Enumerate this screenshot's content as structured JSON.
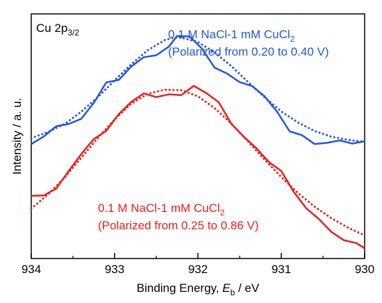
{
  "chart_data": {
    "type": "line",
    "title": "",
    "panel_label": {
      "main": "Cu 2p",
      "sub": "3/2"
    },
    "xlabel": {
      "pre": "Binding Energy, ",
      "var": "E",
      "sub": "b",
      "post": " / eV"
    },
    "ylabel": "Intensity / a. u.",
    "xlim": [
      934,
      930
    ],
    "x_reversed": true,
    "ylim": [
      0,
      1
    ],
    "x_ticks": [
      934,
      933,
      932,
      931,
      930
    ],
    "x_tick_labels": [
      "934",
      "933",
      "932",
      "931",
      "930"
    ],
    "y_ticks": [],
    "grid": false,
    "annotations": [
      {
        "line1_pre": "0.1 M NaCl-1 mM CuCl",
        "line1_sub": "2",
        "line2": "(Polarized from 0.20 to 0.40 V)",
        "color": "#2255dd"
      },
      {
        "line1_pre": "0.1 M NaCl-1 mM CuCl",
        "line1_sub": "2",
        "line2": "(Polarized from 0.25 to 0.86 V)",
        "color": "#ee1c1c"
      }
    ],
    "series": [
      {
        "kind": "measured",
        "color": "#2255dd",
        "x": [
          934.0,
          933.85,
          933.7,
          933.55,
          933.4,
          933.25,
          933.1,
          932.95,
          932.8,
          932.65,
          932.5,
          932.35,
          932.25,
          932.1,
          931.95,
          931.8,
          931.65,
          931.5,
          931.35,
          931.2,
          931.05,
          930.9,
          930.75,
          930.6,
          930.45,
          930.3,
          930.15,
          930.0
        ],
        "y": [
          0.468,
          0.499,
          0.541,
          0.55,
          0.571,
          0.636,
          0.72,
          0.73,
          0.785,
          0.823,
          0.831,
          0.866,
          0.91,
          0.908,
          0.857,
          0.78,
          0.756,
          0.721,
          0.705,
          0.663,
          0.6,
          0.52,
          0.504,
          0.468,
          0.473,
          0.483,
          0.47,
          0.479
        ]
      },
      {
        "kind": "fit",
        "color": "#2255dd",
        "x": [
          934.0,
          933.8,
          933.6,
          933.4,
          933.2,
          933.0,
          932.8,
          932.6,
          932.4,
          932.3,
          932.2,
          932.0,
          931.8,
          931.6,
          931.4,
          931.2,
          931.0,
          930.8,
          930.6,
          930.4,
          930.2,
          930.0
        ],
        "y": [
          0.492,
          0.517,
          0.55,
          0.6,
          0.66,
          0.728,
          0.794,
          0.852,
          0.893,
          0.902,
          0.903,
          0.885,
          0.842,
          0.787,
          0.722,
          0.659,
          0.601,
          0.556,
          0.521,
          0.498,
          0.485,
          0.477
        ]
      },
      {
        "kind": "measured",
        "color": "#ee1c1c",
        "x": [
          934.0,
          933.85,
          933.7,
          933.55,
          933.4,
          933.25,
          933.1,
          932.95,
          932.8,
          932.65,
          932.5,
          932.35,
          932.2,
          932.05,
          931.9,
          931.75,
          931.6,
          931.45,
          931.3,
          931.15,
          931.0,
          930.85,
          930.7,
          930.55,
          930.4,
          930.25,
          930.1,
          930.0
        ],
        "y": [
          0.256,
          0.258,
          0.286,
          0.358,
          0.427,
          0.488,
          0.522,
          0.59,
          0.64,
          0.675,
          0.66,
          0.671,
          0.668,
          0.706,
          0.676,
          0.639,
          0.551,
          0.498,
          0.451,
          0.395,
          0.358,
          0.272,
          0.205,
          0.162,
          0.109,
          0.075,
          0.063,
          0.042
        ]
      },
      {
        "kind": "fit",
        "color": "#ee1c1c",
        "x": [
          934.0,
          933.8,
          933.6,
          933.4,
          933.2,
          933.0,
          932.8,
          932.6,
          932.4,
          932.2,
          932.0,
          931.8,
          931.6,
          931.4,
          931.2,
          931.0,
          930.8,
          930.6,
          930.4,
          930.2,
          930.0
        ],
        "y": [
          0.204,
          0.262,
          0.331,
          0.412,
          0.493,
          0.569,
          0.633,
          0.674,
          0.69,
          0.688,
          0.663,
          0.615,
          0.551,
          0.479,
          0.404,
          0.333,
          0.268,
          0.212,
          0.165,
          0.126,
          0.095
        ]
      }
    ]
  }
}
